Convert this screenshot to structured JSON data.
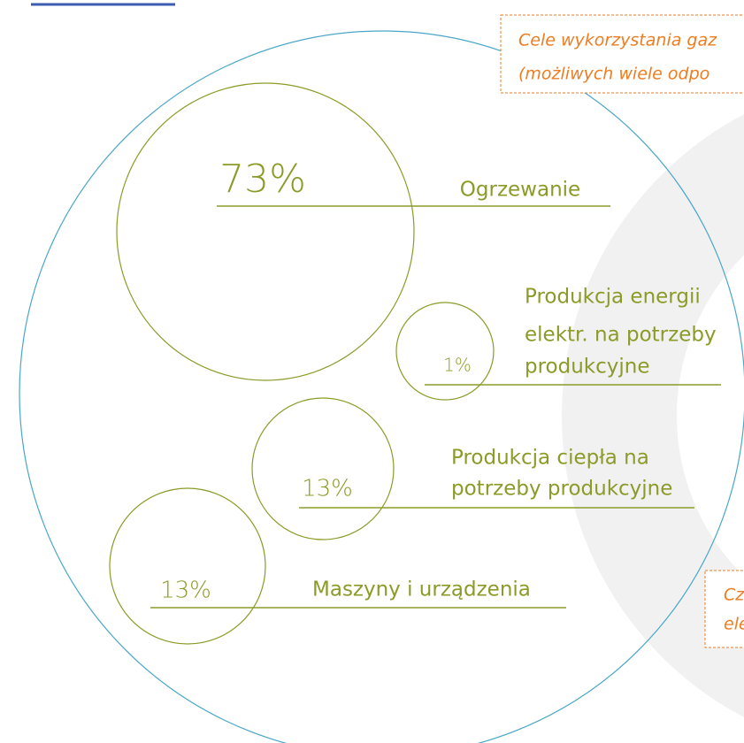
{
  "callouts": [
    {
      "lines": [
        "Cele wykorzystania gaz",
        "(możliwych wiele odpo"
      ]
    },
    {
      "lines": [
        "Cz",
        "ele"
      ]
    }
  ],
  "items": [
    {
      "value_label": "73%",
      "label_lines": [
        "Ogrzewanie"
      ]
    },
    {
      "value_label": "1%",
      "label_lines": [
        "Produkcja energii",
        "elektr. na potrzeby",
        "produkcyjne"
      ]
    },
    {
      "value_label": "13%",
      "label_lines": [
        "Produkcja ciepła na",
        "potrzeby produkcyjne"
      ]
    },
    {
      "value_label": "13%",
      "label_lines": [
        "Maszyny i urządzenia"
      ]
    }
  ]
}
